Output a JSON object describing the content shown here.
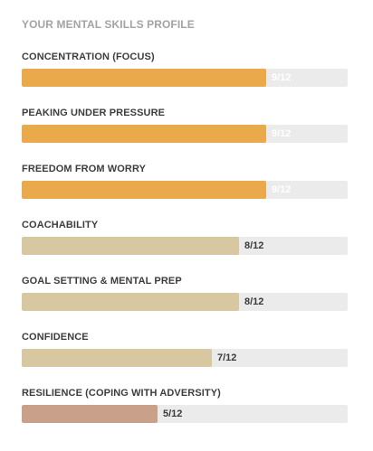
{
  "profile": {
    "title": "YOUR MENTAL SKILLS PROFILE",
    "max_score": 12,
    "skills": [
      {
        "label": "CONCENTRATION (FOCUS)",
        "score_text": "9/12",
        "score": 9,
        "color": "#eaa94a",
        "score_color": "#ffffff"
      },
      {
        "label": "PEAKING UNDER PRESSURE",
        "score_text": "9/12",
        "score": 9,
        "color": "#eaa94a",
        "score_color": "#ffffff"
      },
      {
        "label": "FREEDOM FROM WORRY",
        "score_text": "9/12",
        "score": 9,
        "color": "#eaa94a",
        "score_color": "#ffffff"
      },
      {
        "label": "COACHABILITY",
        "score_text": "8/12",
        "score": 8,
        "color": "#d8c8a2",
        "score_color": "#3a3a3a"
      },
      {
        "label": "GOAL SETTING & MENTAL PREP",
        "score_text": "8/12",
        "score": 8,
        "color": "#d8c8a2",
        "score_color": "#3a3a3a"
      },
      {
        "label": "CONFIDENCE",
        "score_text": "7/12",
        "score": 7,
        "color": "#d8c8a2",
        "score_color": "#3a3a3a"
      },
      {
        "label": "RESILIENCE (COPING WITH ADVERSITY)",
        "score_text": "5/12",
        "score": 5,
        "color": "#c9a18b",
        "score_color": "#3a3a3a"
      }
    ]
  },
  "colors": {
    "track": "#ebebeb",
    "heading": "#a3a3a3",
    "label": "#3d3d3d"
  }
}
